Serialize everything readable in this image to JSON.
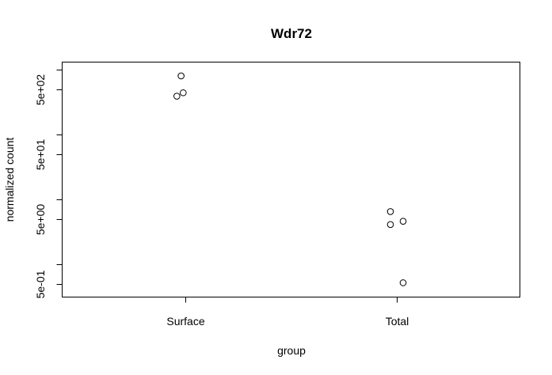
{
  "chart_data": {
    "type": "scatter",
    "title": "Wdr72",
    "xlabel": "group",
    "ylabel": "normalized count",
    "y_scale": "log10",
    "ylim": [
      0.42,
      1000
    ],
    "categories": [
      "Surface",
      "Total"
    ],
    "x_ticks": [
      "Surface",
      "Total"
    ],
    "y_ticks": [
      {
        "value": 0.5,
        "label": "5e-01"
      },
      {
        "value": 1,
        "label": ""
      },
      {
        "value": 5,
        "label": "5e+00"
      },
      {
        "value": 10,
        "label": ""
      },
      {
        "value": 50,
        "label": "5e+01"
      },
      {
        "value": 100,
        "label": ""
      },
      {
        "value": 500,
        "label": "5e+02"
      },
      {
        "value": 1000,
        "label": ""
      }
    ],
    "grid": false,
    "points": [
      {
        "category": "Surface",
        "jitter": -0.02,
        "y": 800
      },
      {
        "category": "Surface",
        "jitter": -0.01,
        "y": 440
      },
      {
        "category": "Surface",
        "jitter": -0.04,
        "y": 390
      },
      {
        "category": "Total",
        "jitter": -0.03,
        "y": 6.5
      },
      {
        "category": "Total",
        "jitter": 0.03,
        "y": 4.6
      },
      {
        "category": "Total",
        "jitter": -0.03,
        "y": 4.1
      },
      {
        "category": "Total",
        "jitter": 0.03,
        "y": 0.52
      }
    ]
  }
}
